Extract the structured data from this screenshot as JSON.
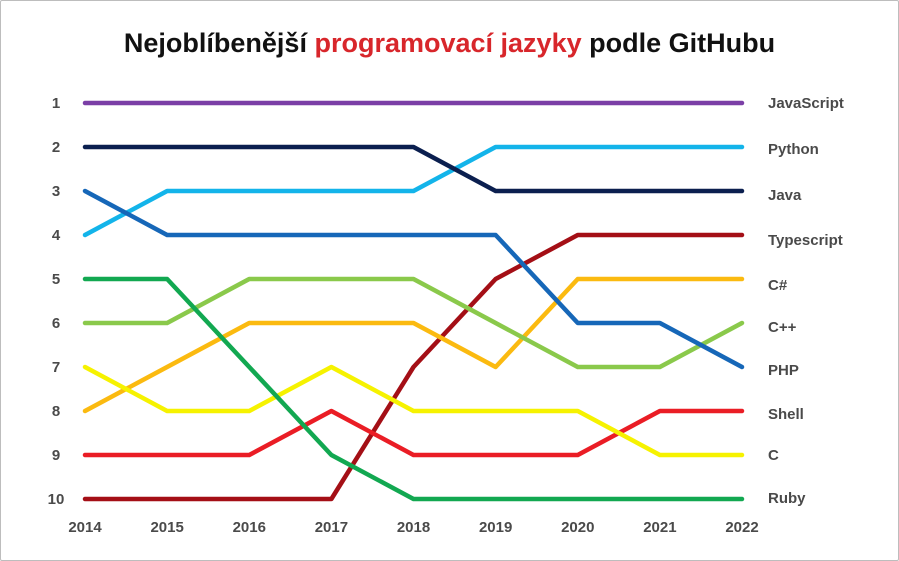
{
  "chart_data": {
    "type": "line",
    "title_parts": [
      "Nejoblíbenější",
      "programovací jazyky",
      "podle GitHubu"
    ],
    "x": [
      "2014",
      "2015",
      "2016",
      "2017",
      "2018",
      "2019",
      "2020",
      "2021",
      "2022"
    ],
    "y_ticks": [
      "1",
      "2",
      "3",
      "4",
      "5",
      "6",
      "7",
      "8",
      "9",
      "10"
    ],
    "ylim": [
      1,
      10
    ],
    "y_inverted": true,
    "xlabel": "",
    "ylabel": "",
    "series": [
      {
        "name": "JavaScript",
        "color": "#7b3fa6",
        "values": [
          1,
          1,
          1,
          1,
          1,
          1,
          1,
          1,
          1
        ]
      },
      {
        "name": "Python",
        "color": "#13b4ea",
        "values": [
          4,
          3,
          3,
          3,
          3,
          2,
          2,
          2,
          2
        ]
      },
      {
        "name": "Java",
        "color": "#0b1f4f",
        "values": [
          2,
          2,
          2,
          2,
          2,
          3,
          3,
          3,
          3
        ]
      },
      {
        "name": "Typescript",
        "color": "#a40f16",
        "values": [
          10,
          10,
          10,
          10,
          7,
          5,
          4,
          4,
          4
        ]
      },
      {
        "name": "C#",
        "color": "#fbba10",
        "values": [
          8,
          7,
          6,
          6,
          6,
          7,
          5,
          5,
          5
        ]
      },
      {
        "name": "C++",
        "color": "#8ac94b",
        "values": [
          6,
          6,
          5,
          5,
          5,
          6,
          7,
          7,
          6
        ]
      },
      {
        "name": "PHP",
        "color": "#1667b8",
        "values": [
          3,
          4,
          4,
          4,
          4,
          4,
          6,
          6,
          7
        ]
      },
      {
        "name": "Shell",
        "color": "#ea1d25",
        "values": [
          9,
          9,
          9,
          8,
          9,
          9,
          9,
          8,
          8
        ]
      },
      {
        "name": "C",
        "color": "#f6f200",
        "values": [
          7,
          8,
          8,
          7,
          8,
          8,
          8,
          9,
          9
        ]
      },
      {
        "name": "Ruby",
        "color": "#12a851",
        "values": [
          5,
          5,
          7,
          9,
          10,
          10,
          10,
          10,
          10
        ]
      }
    ],
    "legend_placement": "right, aligned with final rank",
    "grid": false
  }
}
